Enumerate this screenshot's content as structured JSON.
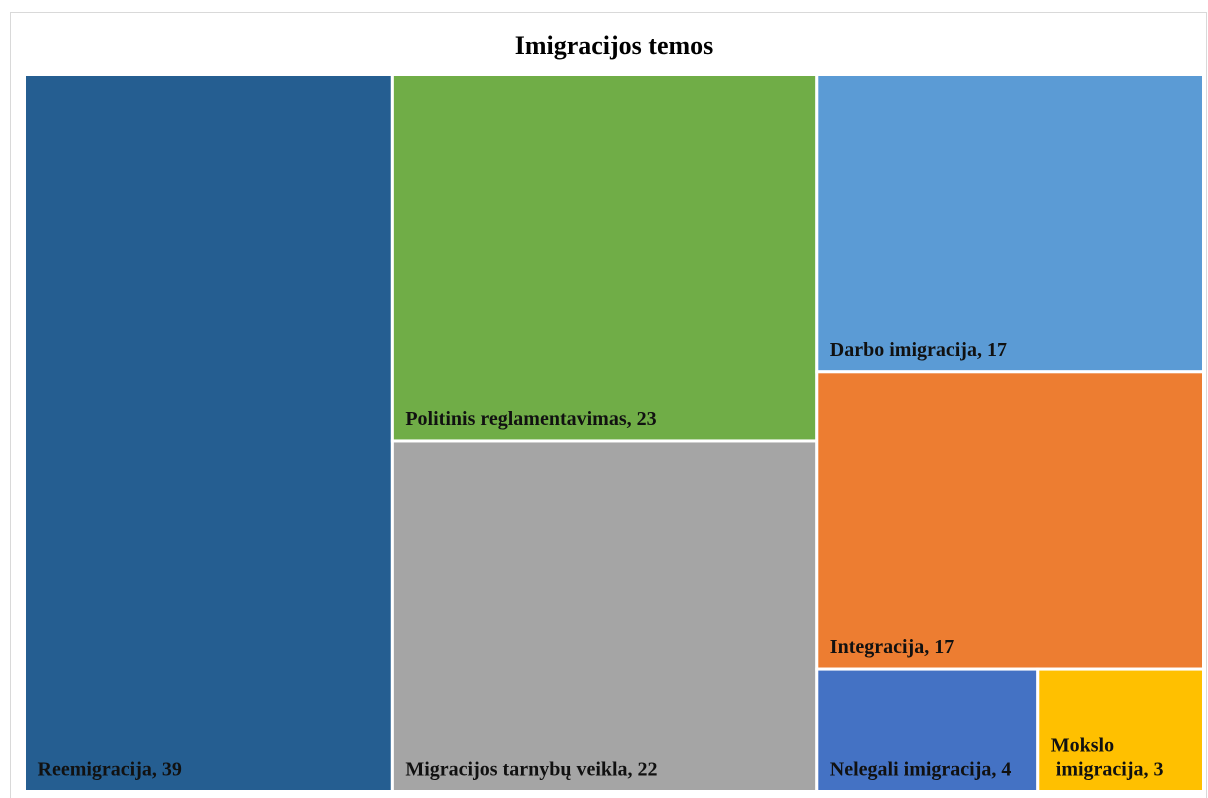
{
  "chart_data": {
    "type": "treemap",
    "title": "Imigracijos temos",
    "values": [
      39,
      23,
      22,
      17,
      17,
      4,
      3
    ],
    "value_labels": [
      "Reemigracija, 39",
      "Politinis reglamentavimas, 23",
      "Migracijos tarnybų veikla, 22",
      "Darbo imigracija, 17",
      "Integracija, 17",
      "Nelegali imigracija, 4",
      "Mokslo imigracija, 3"
    ],
    "colors": [
      "#255e91",
      "#70ad47",
      "#a5a5a5",
      "#5b9bd5",
      "#ed7d31",
      "#4472c4",
      "#ffc000"
    ]
  }
}
